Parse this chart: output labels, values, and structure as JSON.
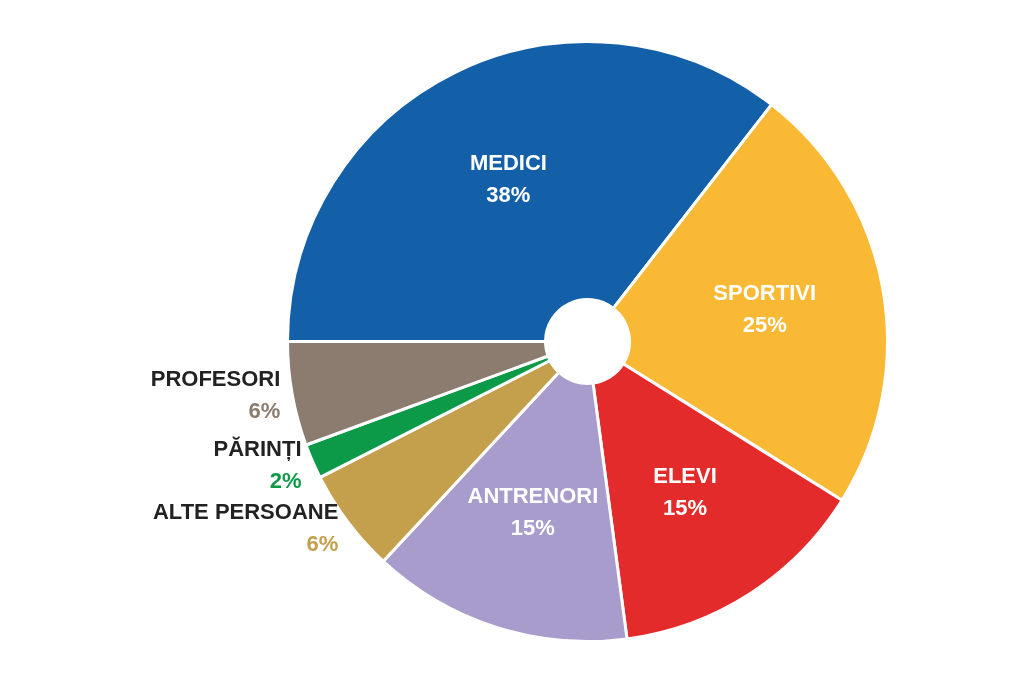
{
  "chart_data": {
    "type": "donut",
    "categories": [
      "MEDICI",
      "SPORTIVI",
      "ELEVI",
      "ANTRENORI",
      "ALTE PERSOANE",
      "PĂRINȚI",
      "PROFESORI"
    ],
    "values": [
      38,
      25,
      15,
      15,
      6,
      2,
      6
    ],
    "value_labels": [
      "38%",
      "25%",
      "15%",
      "15%",
      "6%",
      "2%",
      "6%"
    ],
    "colors": [
      "#1360a8",
      "#f9b935",
      "#e32b2b",
      "#a79ccb",
      "#c4a04d",
      "#0d9a48",
      "#8c7b6f"
    ]
  }
}
